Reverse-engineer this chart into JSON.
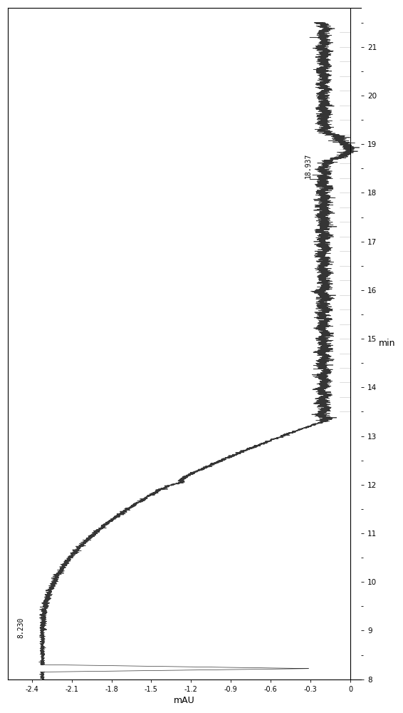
{
  "background": "#ffffff",
  "line_color": "#2a2a2a",
  "xlabel": "mAU",
  "ylabel": "min",
  "annotation_peak1_label": "8.230",
  "annotation_peak1_time": 8.23,
  "annotation_peak2_label": "18.937",
  "annotation_peak2_time": 18.937,
  "x_min": -2.55,
  "x_max": -0.58,
  "y_min": 8.5,
  "y_max": 21.5,
  "baseline_signal": -2.32,
  "plateau_signal": -0.22,
  "x_tick_step": 0.3,
  "y_tick_step": 1.0,
  "tick_line_x_start": -0.65,
  "tick_line_x_end": -0.58
}
